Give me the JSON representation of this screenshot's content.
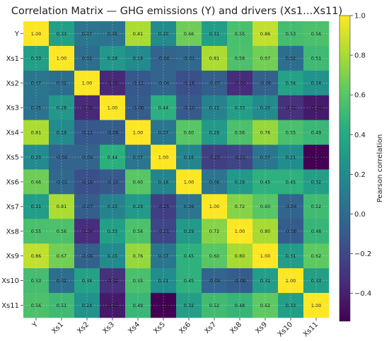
{
  "chart_data": {
    "type": "heatmap",
    "title": "Correlation Matrix — GHG emissions (Y) and drivers (Xs1…Xs11)",
    "row_labels": [
      "Y",
      "Xs1",
      "Xs2",
      "Xs3",
      "Xs4",
      "Xs5",
      "Xs6",
      "Xs7",
      "Xs8",
      "Xs9",
      "Xs10",
      "Xs11"
    ],
    "col_labels": [
      "Y",
      "Xs1",
      "Xs2",
      "Xs3",
      "Xs4",
      "Xs5",
      "Xs6",
      "Xs7",
      "Xs8",
      "Xs9",
      "Xs10",
      "Xs11"
    ],
    "values": [
      [
        1.0,
        0.33,
        0.07,
        0.05,
        0.81,
        0.2,
        0.66,
        0.31,
        0.55,
        0.86,
        0.53,
        0.56
      ],
      [
        0.33,
        1.0,
        0.02,
        0.28,
        0.19,
        -0.04,
        -0.01,
        0.81,
        0.56,
        0.67,
        0.02,
        0.51
      ],
      [
        0.07,
        0.02,
        1.0,
        -0.36,
        -0.11,
        -0.04,
        -0.16,
        -0.07,
        -0.34,
        -0.06,
        0.34,
        0.24
      ],
      [
        0.05,
        0.28,
        -0.36,
        1.0,
        -0.08,
        0.44,
        -0.1,
        0.15,
        0.33,
        0.2,
        -0.32,
        -0.43
      ],
      [
        0.81,
        0.19,
        -0.11,
        -0.08,
        1.0,
        0.07,
        0.6,
        0.29,
        0.56,
        0.76,
        0.55,
        0.49
      ],
      [
        0.2,
        -0.04,
        -0.04,
        0.44,
        0.07,
        1.0,
        0.16,
        -0.25,
        -0.21,
        0.07,
        0.21,
        -0.54
      ],
      [
        0.66,
        -0.01,
        -0.16,
        -0.1,
        0.6,
        0.16,
        1.0,
        0.06,
        0.29,
        0.45,
        0.45,
        0.32
      ],
      [
        0.31,
        0.81,
        -0.07,
        0.15,
        0.29,
        -0.25,
        0.06,
        1.0,
        0.72,
        0.6,
        -0.04,
        0.52
      ],
      [
        0.55,
        0.56,
        -0.34,
        0.33,
        0.56,
        -0.21,
        0.29,
        0.72,
        1.0,
        0.8,
        -0.08,
        0.48
      ],
      [
        0.86,
        0.67,
        -0.06,
        0.2,
        0.76,
        0.07,
        0.45,
        0.6,
        0.8,
        1.0,
        0.31,
        0.62
      ],
      [
        0.53,
        0.02,
        0.34,
        -0.32,
        0.55,
        0.21,
        0.45,
        -0.04,
        -0.08,
        0.31,
        1.0,
        0.33
      ],
      [
        0.56,
        0.51,
        0.24,
        -0.43,
        0.49,
        -0.54,
        0.32,
        0.52,
        0.48,
        0.62,
        0.33,
        1.0
      ]
    ],
    "colormap": "viridis",
    "color_range": [
      -0.54,
      1.0
    ],
    "colorbar": {
      "label": "Pearson correlation",
      "ticks": [
        "1.0",
        "0.8",
        "0.6",
        "0.4",
        "0.2",
        "0.0",
        "−0.2",
        "−0.4"
      ],
      "tick_values": [
        1.0,
        0.8,
        0.6,
        0.4,
        0.2,
        0.0,
        -0.2,
        -0.4
      ]
    },
    "grid": true,
    "annotations": "cell values shown with two decimals"
  }
}
